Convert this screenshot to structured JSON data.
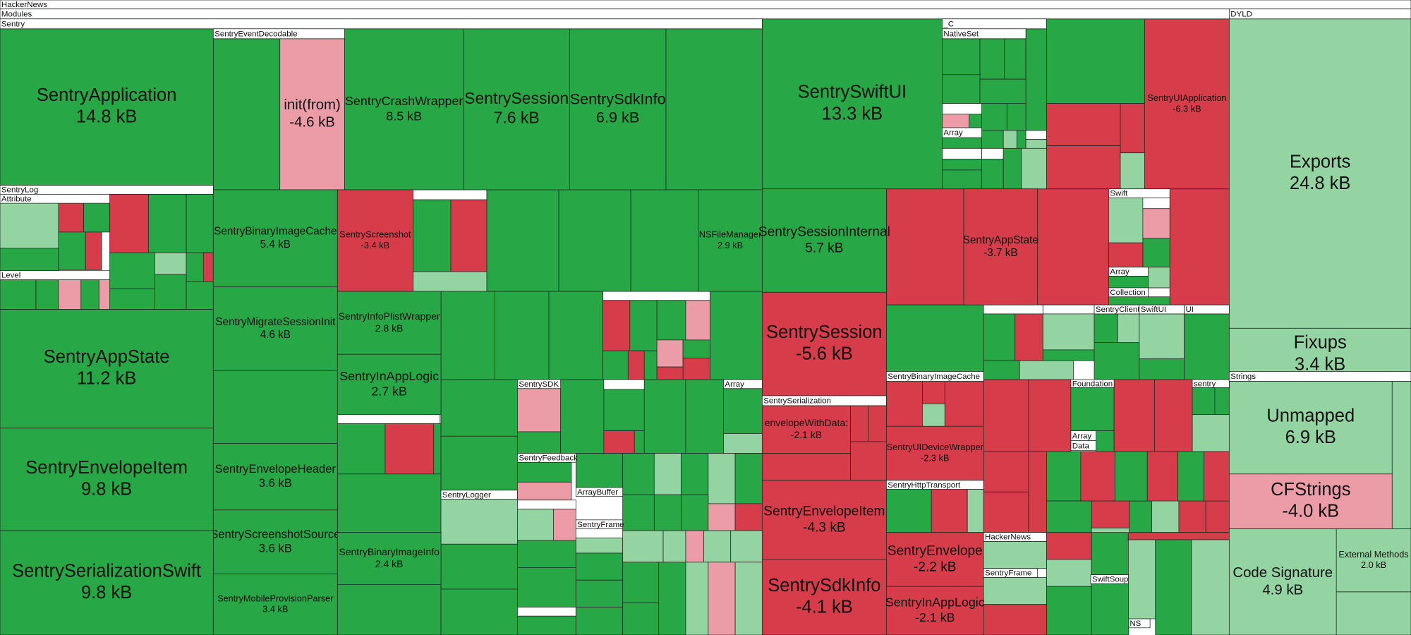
{
  "headers": [
    "HackerNews",
    "Modules",
    "Sentry",
    "DYLD",
    "SentryEventDecodable",
    "SentryLog",
    "Attribute",
    "Level",
    "_C",
    "NativeSet",
    "Array",
    "Swift",
    "Array",
    "Collection",
    "SentryClient",
    "SwiftUI",
    "UI",
    "SentrySDK",
    "Array",
    "SentrySerialization",
    "SentryBinaryImageCache",
    "Foundation",
    "sentry",
    "Strings",
    "Array",
    "Data",
    "SentryFeedback",
    "SentryHttpTransport",
    "ArrayBuffer",
    "SentryLogger",
    "SentryFrame",
    "HackerNews",
    "SentryFrame",
    "SwiftSoup",
    "NS"
  ],
  "nodes": [
    {
      "label": "SentryApplication",
      "size": "14.8 kB"
    },
    {
      "label": "init(from)",
      "size": "-4.6 kB"
    },
    {
      "label": "SentryCrashWrapper",
      "size": "8.5 kB"
    },
    {
      "label": "SentrySession",
      "size": "7.6 kB"
    },
    {
      "label": "SentrySdkInfo",
      "size": "6.9 kB"
    },
    {
      "label": "SentrySwiftUI",
      "size": "13.3 kB"
    },
    {
      "label": "SentryUIApplication",
      "size": "-6.3 kB"
    },
    {
      "label": "Exports",
      "size": "24.8 kB"
    },
    {
      "label": "Fixups",
      "size": "3.4 kB"
    },
    {
      "label": "SentryBinaryImageCache",
      "size": "5.4 kB"
    },
    {
      "label": "SentryScreenshot",
      "size": "-3.4 kB"
    },
    {
      "label": "NSFileManager",
      "size": "2.9 kB"
    },
    {
      "label": "SentrySessionInternal",
      "size": "5.7 kB"
    },
    {
      "label": "SentryAppState",
      "size": "-3.7 kB"
    },
    {
      "label": "SentryAppState",
      "size": "11.2 kB"
    },
    {
      "label": "SentryMigrateSessionInit",
      "size": "4.6 kB"
    },
    {
      "label": "SentryInfoPlistWrapper",
      "size": "2.8 kB"
    },
    {
      "label": "SentryInAppLogic",
      "size": "2.7 kB"
    },
    {
      "label": "SentrySession",
      "size": "-5.6 kB"
    },
    {
      "label": "Unmapped",
      "size": "6.9 kB"
    },
    {
      "label": "SentryEnvelopeItem",
      "size": "9.8 kB"
    },
    {
      "label": "SentryEnvelopeHeader",
      "size": "3.6 kB"
    },
    {
      "label": "envelopeWithData:",
      "size": "-2.1 kB"
    },
    {
      "label": "SentryUIDeviceWrapper",
      "size": "-2.3 kB"
    },
    {
      "label": "CFStrings",
      "size": "-4.0 kB"
    },
    {
      "label": "SentryEnvelopeItem",
      "size": "-4.3 kB"
    },
    {
      "label": "SentryScreenshotSource",
      "size": "3.6 kB"
    },
    {
      "label": "SentryBinaryImageInfo",
      "size": "2.4 kB"
    },
    {
      "label": "SentryEnvelope",
      "size": "-2.2 kB"
    },
    {
      "label": "External Methods",
      "size": "2.0 kB"
    },
    {
      "label": "SentrySerializationSwift",
      "size": "9.8 kB"
    },
    {
      "label": "Code Signature",
      "size": "4.9 kB"
    },
    {
      "label": "SentryMobileProvisionParser",
      "size": "3.4 kB"
    },
    {
      "label": "SentrySdkInfo",
      "size": "-4.1 kB"
    },
    {
      "label": "SentryInAppLogic",
      "size": "-2.1 kB"
    }
  ]
}
